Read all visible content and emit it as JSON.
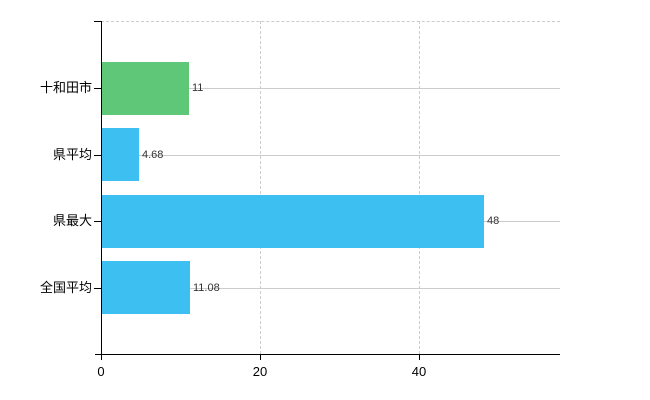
{
  "chart_data": {
    "type": "bar",
    "orientation": "horizontal",
    "title": "",
    "categories": [
      "十和田市",
      "県平均",
      "県最大",
      "全国平均"
    ],
    "values": [
      11,
      4.68,
      48,
      11.08
    ],
    "value_labels": [
      "11",
      "4.68",
      "48",
      "11.08"
    ],
    "bar_colors": [
      "#5fc878",
      "#3dbff2",
      "#3dbff2",
      "#3dbff2"
    ],
    "x_ticks": [
      0,
      20,
      40
    ],
    "x_tick_labels": [
      "0",
      "20",
      "40"
    ],
    "xlim": [
      0,
      57.7
    ],
    "xlabel": "",
    "ylabel": "",
    "grid": true,
    "legend": false,
    "colors": {
      "highlight_bar": "#5fc878",
      "default_bar": "#3dbff2",
      "grid": "#cccccc",
      "axis": "#000000",
      "value_text": "#333333",
      "label_text": "#000000",
      "background": "#ffffff"
    }
  }
}
